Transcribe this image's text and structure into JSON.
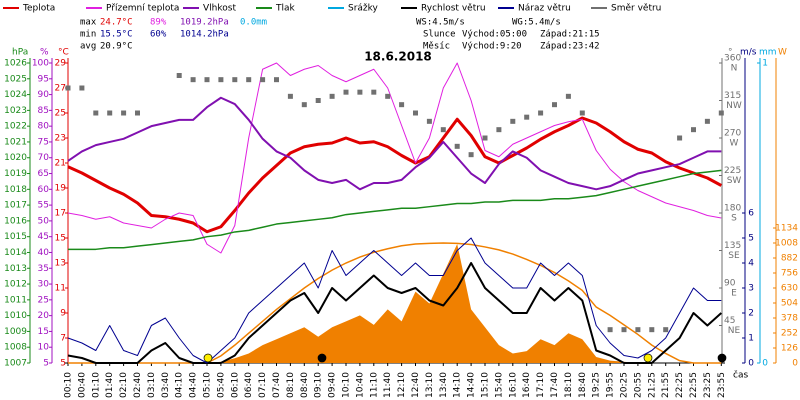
{
  "chart_data": {
    "type": "line",
    "title": "18.6.2018",
    "xlabel": "čas",
    "categories": [
      "00:10",
      "00:40",
      "01:10",
      "01:40",
      "02:10",
      "02:40",
      "03:10",
      "03:40",
      "04:10",
      "04:40",
      "05:10",
      "05:40",
      "06:10",
      "06:40",
      "07:10",
      "07:40",
      "08:10",
      "08:40",
      "09:10",
      "09:40",
      "10:10",
      "10:40",
      "11:10",
      "11:40",
      "12:10",
      "12:40",
      "13:10",
      "13:40",
      "14:10",
      "14:40",
      "15:10",
      "15:40",
      "16:10",
      "16:40",
      "17:10",
      "17:40",
      "18:10",
      "18:40",
      "19:25",
      "19:55",
      "20:25",
      "20:55",
      "21:25",
      "21:55",
      "22:25",
      "22:55",
      "23:25",
      "23:55"
    ],
    "axes": [
      {
        "title": "hPa",
        "color": "#1a8a1a",
        "lim": [
          1007,
          1026
        ],
        "ticks": [
          1007,
          1008,
          1009,
          1010,
          1011,
          1012,
          1013,
          1014,
          1015,
          1016,
          1017,
          1018,
          1019,
          1020,
          1021,
          1022,
          1023,
          1024,
          1025,
          1026
        ]
      },
      {
        "title": "%",
        "color": "#a010c0",
        "lim": [
          5,
          100
        ],
        "ticks": [
          5,
          10,
          15,
          20,
          25,
          30,
          35,
          40,
          45,
          50,
          55,
          60,
          65,
          70,
          75,
          80,
          85,
          90,
          95,
          100
        ]
      },
      {
        "title": "°C",
        "color": "#e00000",
        "lim": [
          5,
          29
        ],
        "ticks": [
          5,
          7,
          9,
          11,
          13,
          15,
          17,
          19,
          21,
          23,
          25,
          27,
          29
        ]
      },
      {
        "title": "°",
        "color": "#707070",
        "lim": [
          0,
          360
        ],
        "ticks": [
          45,
          90,
          135,
          180,
          225,
          270,
          315,
          360
        ],
        "compass": [
          "NE",
          "E",
          "SE",
          "S",
          "SW",
          "W",
          "NW",
          "N"
        ]
      },
      {
        "title": "m/s",
        "color": "#000080",
        "lim": [
          0,
          12
        ],
        "ticks": [
          0,
          1,
          2,
          3,
          4,
          5,
          6
        ]
      },
      {
        "title": "mm",
        "color": "#00a8e0",
        "lim": [
          0,
          1
        ],
        "ticks": [
          0,
          1
        ]
      },
      {
        "title": "W",
        "color": "#f08000",
        "lim": [
          0,
          2520
        ],
        "ticks": [
          0,
          126,
          252,
          378,
          504,
          630,
          756,
          882,
          1008,
          1134
        ]
      }
    ],
    "series": [
      {
        "name": "Teplota",
        "color": "#e00000",
        "axis": 2,
        "values": [
          20.7,
          20.2,
          19.6,
          19.0,
          18.5,
          17.8,
          16.8,
          16.7,
          16.5,
          16.2,
          15.5,
          15.9,
          17.2,
          18.6,
          19.8,
          20.8,
          21.8,
          22.3,
          22.5,
          22.6,
          23.0,
          22.6,
          22.7,
          22.3,
          21.6,
          21.0,
          21.5,
          23.0,
          24.5,
          23.2,
          21.5,
          21.0,
          21.6,
          22.2,
          22.9,
          23.5,
          24.0,
          24.6,
          24.2,
          23.5,
          22.7,
          22.1,
          21.8,
          21.1,
          20.6,
          20.2,
          19.8,
          19.2
        ]
      },
      {
        "name": "Přízemní teplota",
        "color": "#e020e0",
        "axis": 2,
        "values": [
          17.0,
          16.8,
          16.5,
          16.7,
          16.2,
          16.0,
          15.8,
          16.5,
          17.0,
          16.8,
          14.5,
          13.8,
          16.0,
          23.0,
          28.5,
          29.0,
          28.0,
          28.5,
          28.8,
          28.0,
          27.5,
          28.0,
          28.5,
          27.0,
          24.0,
          21.0,
          23.0,
          27.0,
          29.0,
          26.0,
          22.0,
          21.5,
          22.5,
          23.0,
          23.5,
          24.0,
          24.3,
          24.5,
          22.0,
          20.5,
          19.5,
          18.8,
          18.3,
          17.8,
          17.5,
          17.2,
          16.8,
          16.6
        ]
      },
      {
        "name": "Vlhkost",
        "color": "#8010b0",
        "axis": 1,
        "values": [
          69,
          72,
          74,
          75,
          76,
          78,
          80,
          81,
          82,
          82,
          86,
          89,
          87,
          82,
          76,
          72,
          70,
          66,
          63,
          62,
          63,
          60,
          62,
          62,
          63,
          67,
          70,
          75,
          70,
          65,
          62,
          68,
          72,
          70,
          66,
          64,
          62,
          61,
          60,
          61,
          63,
          65,
          66,
          67,
          68,
          70,
          72,
          72
        ]
      },
      {
        "name": "Tlak",
        "color": "#1a8a1a",
        "axis": 0,
        "values": [
          1014.2,
          1014.2,
          1014.2,
          1014.3,
          1014.3,
          1014.4,
          1014.5,
          1014.6,
          1014.7,
          1014.8,
          1015.0,
          1015.1,
          1015.3,
          1015.4,
          1015.6,
          1015.8,
          1015.9,
          1016.0,
          1016.1,
          1016.2,
          1016.4,
          1016.5,
          1016.6,
          1016.7,
          1016.8,
          1016.8,
          1016.9,
          1017.0,
          1017.1,
          1017.1,
          1017.2,
          1017.2,
          1017.3,
          1017.3,
          1017.3,
          1017.4,
          1017.4,
          1017.5,
          1017.6,
          1017.8,
          1018.0,
          1018.2,
          1018.4,
          1018.6,
          1018.8,
          1019.0,
          1019.1,
          1019.2
        ]
      },
      {
        "name": "Srážky",
        "color": "#00a8e0",
        "axis": 5,
        "values": [
          0,
          0,
          0,
          0,
          0,
          0,
          0,
          0,
          0,
          0,
          0,
          0,
          0,
          0,
          0,
          0,
          0,
          0,
          0,
          0,
          0,
          0,
          0,
          0,
          0,
          0,
          0,
          0,
          0,
          0,
          0,
          0,
          0,
          0,
          0,
          0,
          0,
          0,
          0,
          0,
          0,
          0,
          0,
          0,
          0,
          0,
          0,
          0
        ]
      },
      {
        "name": "Rychlost větru",
        "color": "#000000",
        "axis": 4,
        "values": [
          0.3,
          0.2,
          0,
          0,
          0,
          0,
          0.5,
          0.8,
          0.2,
          0,
          0,
          0,
          0.3,
          1.0,
          1.5,
          2.0,
          2.5,
          2.8,
          2.0,
          3.0,
          2.5,
          3.0,
          3.5,
          3.0,
          2.8,
          3.0,
          2.5,
          2.3,
          3.0,
          4.0,
          3.0,
          2.5,
          2.0,
          2.0,
          3.0,
          2.5,
          3.0,
          2.5,
          0.5,
          0.3,
          0,
          0,
          0,
          0.5,
          1.0,
          2.0,
          1.5,
          2.0
        ]
      },
      {
        "name": "Náraz větru",
        "color": "#000090",
        "axis": 4,
        "values": [
          1.0,
          0.8,
          0.5,
          1.5,
          0.5,
          0.3,
          1.5,
          1.8,
          1.0,
          0.3,
          0,
          0.5,
          1.0,
          2.0,
          2.5,
          3.0,
          3.5,
          4.0,
          3.0,
          4.5,
          3.5,
          4.0,
          4.5,
          4.0,
          3.5,
          4.0,
          3.5,
          3.5,
          4.5,
          5.0,
          4.0,
          3.5,
          3.0,
          3.0,
          4.0,
          3.5,
          4.0,
          3.5,
          1.5,
          0.8,
          0.3,
          0.2,
          0.5,
          1.0,
          2.0,
          3.0,
          2.5,
          2.5
        ]
      },
      {
        "name": "Směr větru",
        "color": "#707070",
        "axis": 3,
        "values": [
          330,
          330,
          300,
          300,
          300,
          300,
          null,
          null,
          345,
          340,
          340,
          340,
          340,
          340,
          340,
          340,
          320,
          310,
          315,
          320,
          325,
          325,
          325,
          320,
          310,
          300,
          290,
          280,
          260,
          250,
          270,
          280,
          290,
          295,
          300,
          310,
          320,
          300,
          null,
          40,
          40,
          40,
          40,
          40,
          270,
          280,
          290,
          300
        ]
      }
    ],
    "solar": {
      "color": "#f08000",
      "axis": 6,
      "values": [
        0,
        0,
        0,
        0,
        0,
        0,
        0,
        0,
        0,
        0,
        0,
        10,
        40,
        80,
        150,
        200,
        250,
        300,
        220,
        300,
        350,
        400,
        320,
        450,
        350,
        600,
        500,
        750,
        1000,
        450,
        300,
        150,
        80,
        100,
        200,
        150,
        250,
        200,
        50,
        20,
        10,
        0,
        0,
        0,
        0,
        0,
        0,
        0
      ],
      "clear_sky": [
        0,
        0,
        0,
        0,
        0,
        0,
        0,
        0,
        0,
        0,
        0,
        60,
        150,
        250,
        350,
        450,
        540,
        630,
        710,
        780,
        840,
        890,
        930,
        960,
        985,
        1000,
        1005,
        1008,
        1005,
        995,
        975,
        950,
        915,
        870,
        820,
        760,
        690,
        610,
        470,
        400,
        320,
        240,
        150,
        80,
        20,
        0,
        0,
        0
      ]
    },
    "stats": {
      "max": {
        "label": "max",
        "temp": "24.7°C",
        "humidity": "89%",
        "pressure": "1019.2hPa",
        "precip": "0.0mm"
      },
      "min": {
        "label": "min",
        "temp": "15.5°C",
        "humidity": "60%",
        "pressure": "1014.2hPa"
      },
      "avg": {
        "label": "avg",
        "temp": "20.9°C"
      }
    },
    "wind": {
      "ws": "WS:4.5m/s",
      "wg": "WG:5.4m/s"
    },
    "sun": {
      "label": "Slunce",
      "rise": "Východ:05:00",
      "set": "Západ:21:15"
    },
    "moon": {
      "label": "Měsíc",
      "rise": "Východ:9:20",
      "set": "Západ:23:42"
    }
  }
}
